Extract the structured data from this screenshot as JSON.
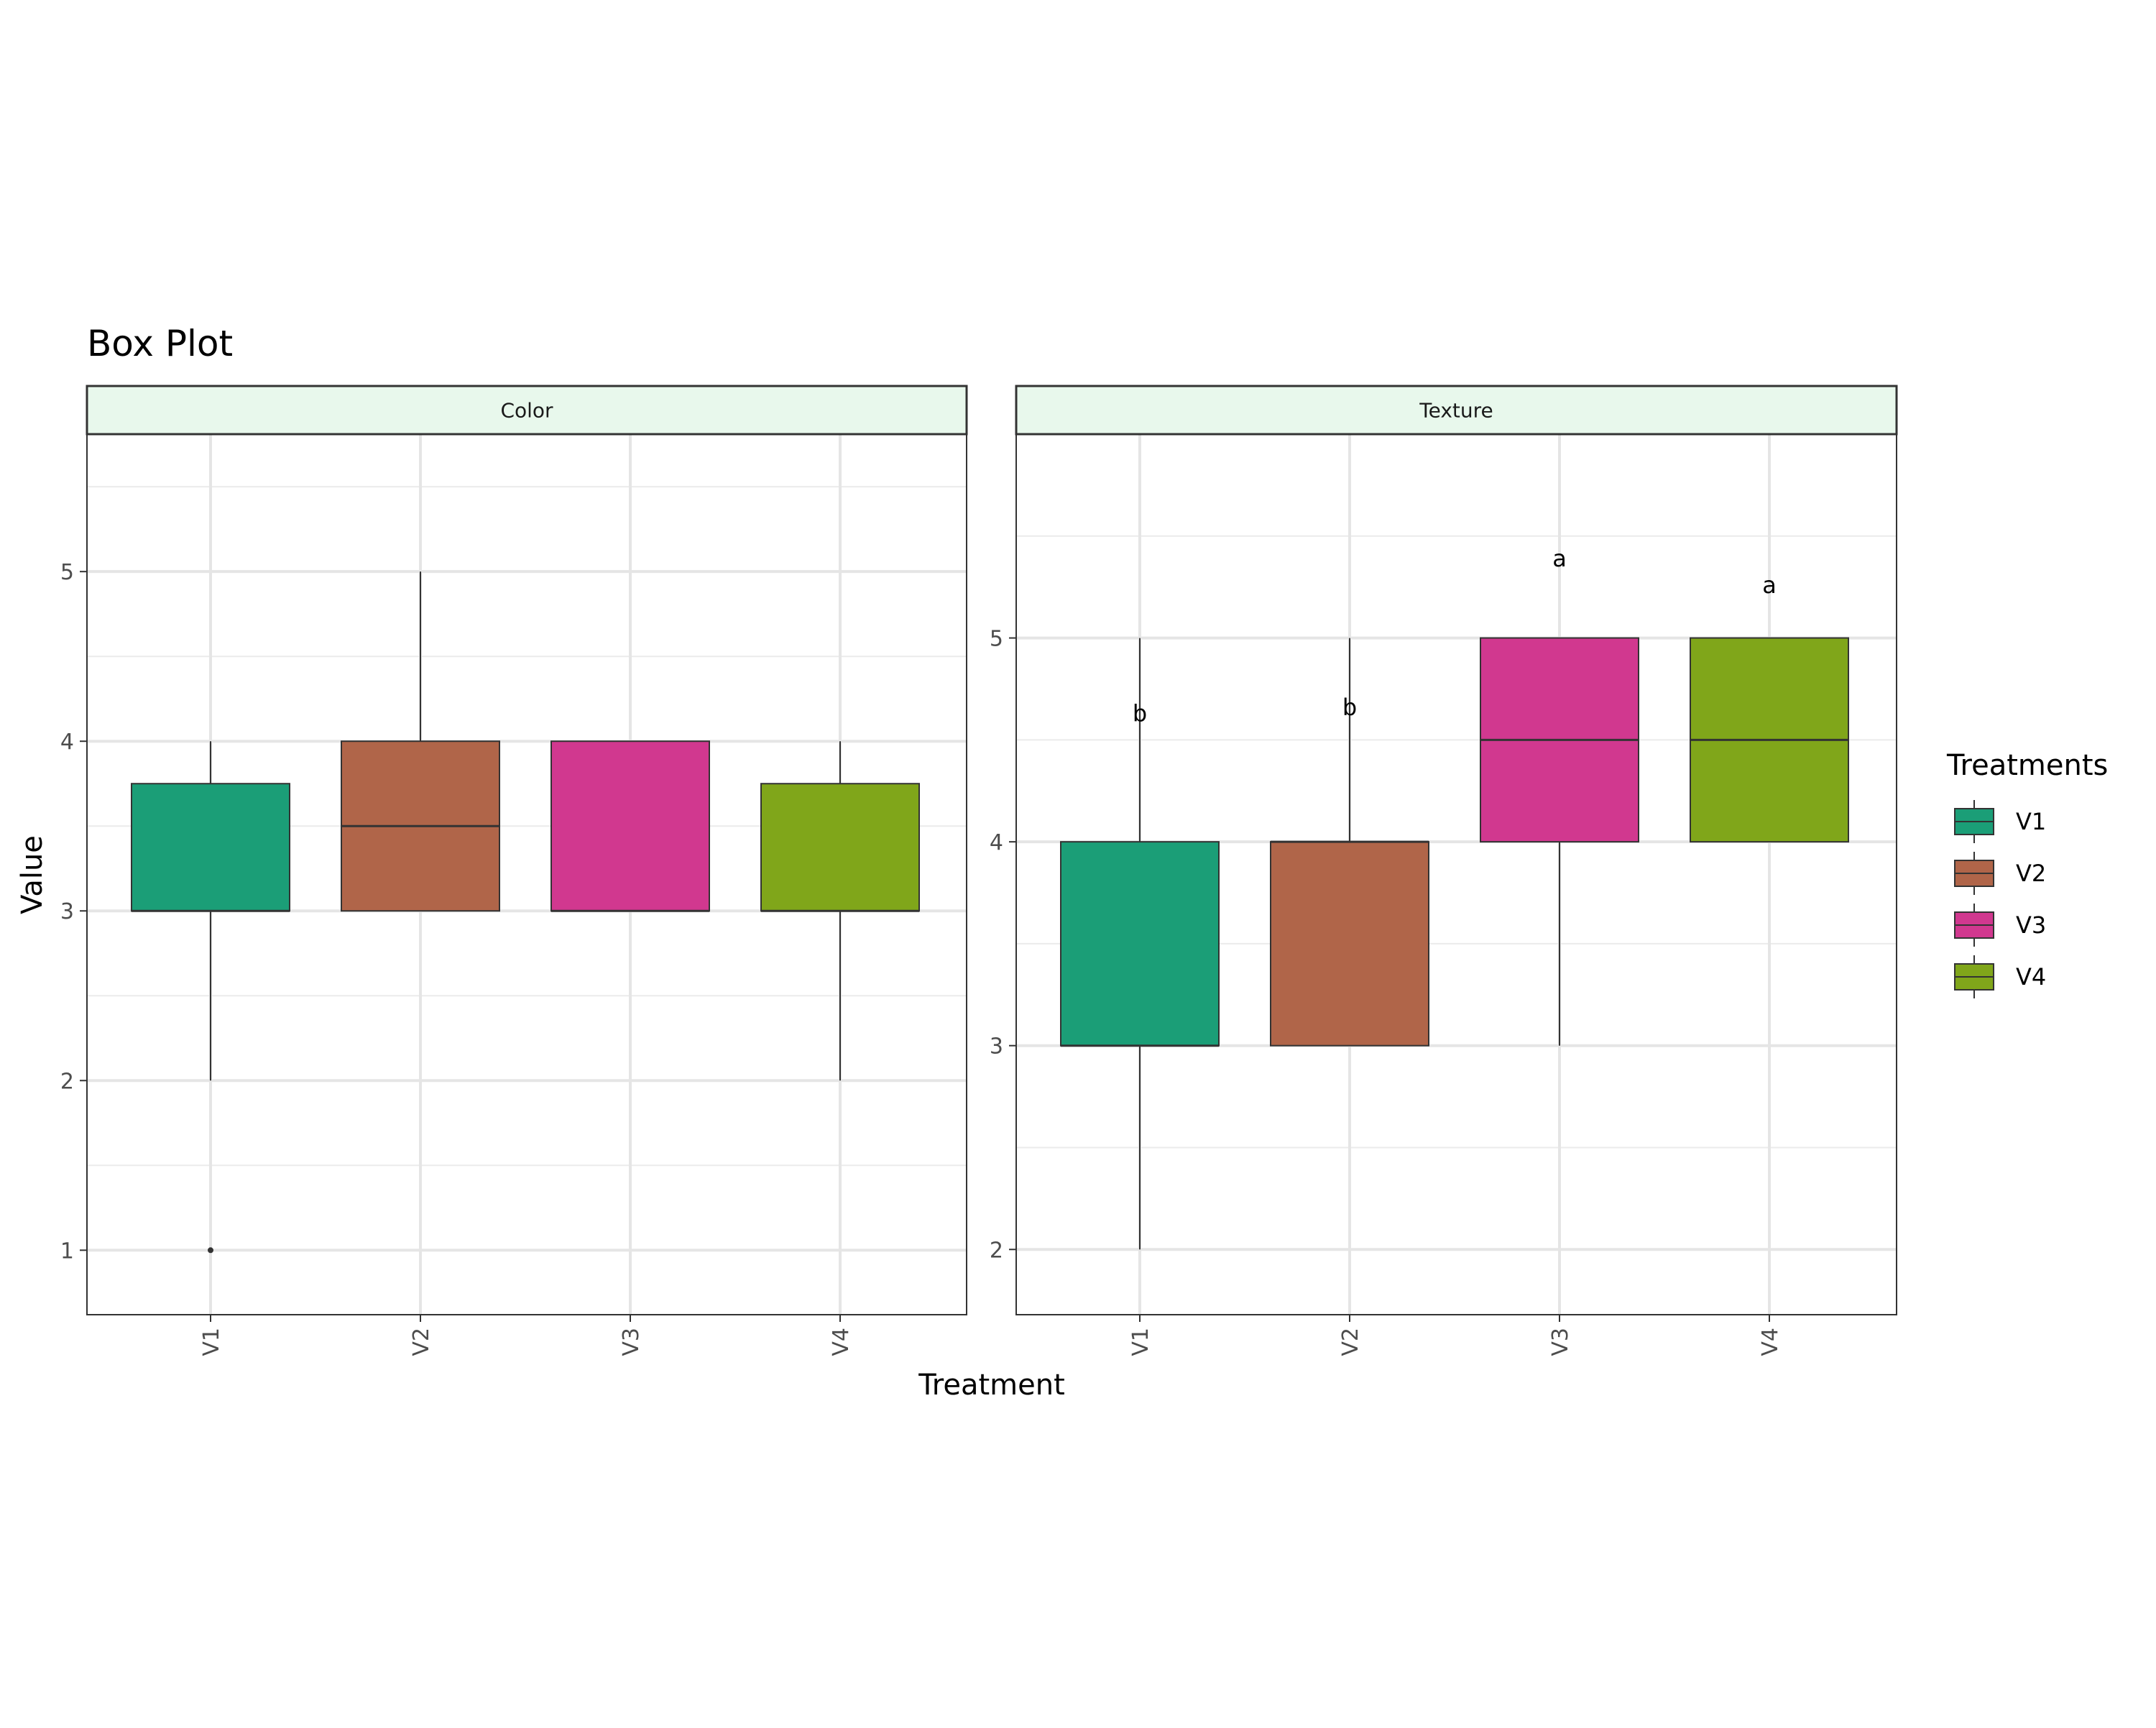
{
  "chart_data": {
    "type": "box",
    "title": "Box Plot",
    "xlabel": "Treatment",
    "ylabel": "Value",
    "grid": true,
    "legend": {
      "title": "Treatments",
      "position": "right",
      "entries": [
        "V1",
        "V2",
        "V3",
        "V4"
      ]
    },
    "colors": {
      "V1": "#1b9e77",
      "V2": "#b06549",
      "V3": "#d1388f",
      "V4": "#80a61a"
    },
    "strip_fill": "#e8f8ec",
    "facets": [
      {
        "name": "Color",
        "ylim": [
          0.62,
          5.81
        ],
        "yticks": [
          1,
          2,
          3,
          4,
          5
        ],
        "categories": [
          "V1",
          "V2",
          "V3",
          "V4"
        ],
        "boxes": [
          {
            "min": 2,
            "q1": 3,
            "median": 3,
            "q3": 3.75,
            "max": 4,
            "outliers": [
              1
            ]
          },
          {
            "min": 3,
            "q1": 3,
            "median": 3.5,
            "q3": 4,
            "max": 5,
            "outliers": []
          },
          {
            "min": 3,
            "q1": 3,
            "median": 3,
            "q3": 4,
            "max": 4,
            "outliers": []
          },
          {
            "min": 2,
            "q1": 3,
            "median": 3,
            "q3": 3.75,
            "max": 4,
            "outliers": []
          }
        ],
        "labels": []
      },
      {
        "name": "Texture",
        "ylim": [
          1.68,
          6.0
        ],
        "yticks": [
          2,
          3,
          4,
          5
        ],
        "categories": [
          "V1",
          "V2",
          "V3",
          "V4"
        ],
        "boxes": [
          {
            "min": 2,
            "q1": 3,
            "median": 3,
            "q3": 4,
            "max": 5,
            "outliers": []
          },
          {
            "min": 3,
            "q1": 3,
            "median": 4,
            "q3": 4,
            "max": 5,
            "outliers": []
          },
          {
            "min": 3,
            "q1": 4,
            "median": 4.5,
            "q3": 5,
            "max": 5,
            "outliers": []
          },
          {
            "min": 4,
            "q1": 4,
            "median": 4.5,
            "q3": 5,
            "max": 5,
            "outliers": []
          }
        ],
        "labels": [
          {
            "category": "V1",
            "text": "b",
            "y": 4.63
          },
          {
            "category": "V2",
            "text": "b",
            "y": 4.66
          },
          {
            "category": "V3",
            "text": "a",
            "y": 5.39
          },
          {
            "category": "V4",
            "text": "a",
            "y": 5.26
          }
        ]
      }
    ]
  }
}
